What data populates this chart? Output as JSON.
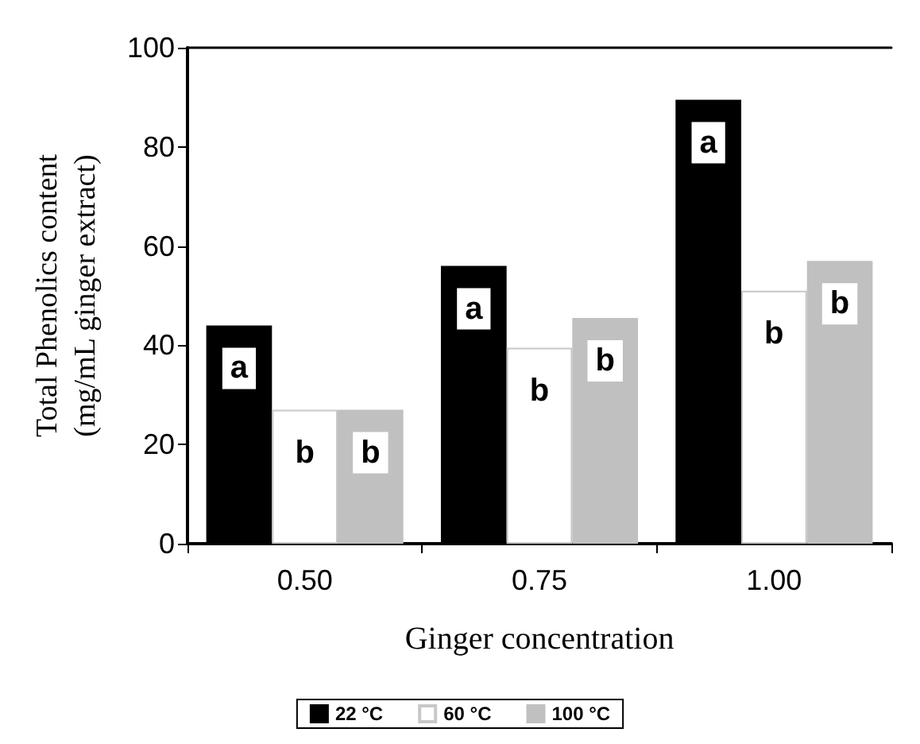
{
  "chart_data": {
    "type": "bar",
    "xlabel": "Ginger concentration",
    "ylabel": "Total Phenolics content\n(mg/mL ginger extract)",
    "categories": [
      "0.50",
      "0.75",
      "1.00"
    ],
    "ylim": [
      0,
      100
    ],
    "yticks": [
      0,
      20,
      40,
      60,
      80,
      100
    ],
    "grid": false,
    "legend": "bottom",
    "series": [
      {
        "name": "22 °C",
        "color": "#000000",
        "values": [
          44,
          56,
          89.5
        ],
        "value_labels": [
          "a",
          "a",
          "a"
        ]
      },
      {
        "name": "60 °C",
        "color": "#ffffff",
        "values": [
          27,
          39.5,
          51
        ],
        "value_labels": [
          "b",
          "b",
          "b"
        ]
      },
      {
        "name": "100 °C",
        "color": "#c0c0c0",
        "values": [
          27,
          45.5,
          57
        ],
        "value_labels": [
          "b",
          "b",
          "b"
        ]
      }
    ]
  }
}
